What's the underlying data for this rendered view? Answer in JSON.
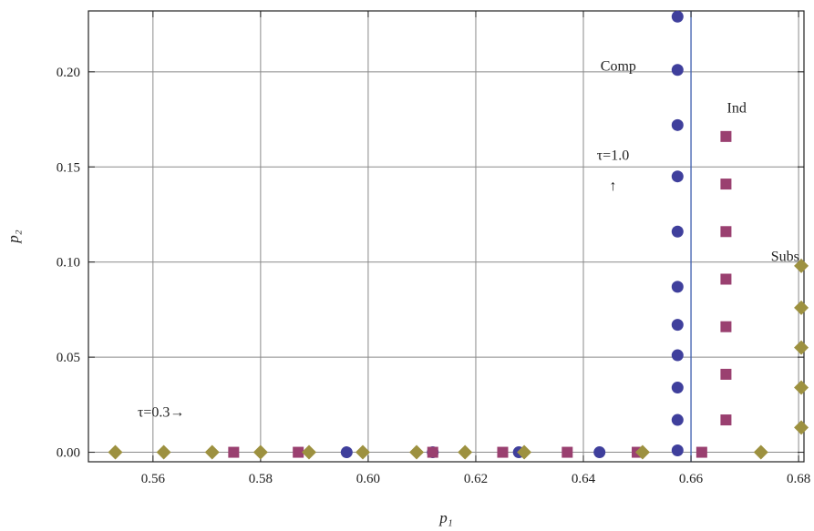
{
  "chart_data": {
    "type": "scatter",
    "xlabel": "p₁",
    "ylabel": "p₂",
    "xlim": [
      0.548,
      0.681
    ],
    "ylim": [
      -0.005,
      0.232
    ],
    "x_ticks": [
      0.56,
      0.58,
      0.6,
      0.62,
      0.64,
      0.66,
      0.68
    ],
    "x_tick_labels": [
      "0.56",
      "0.58",
      "0.60",
      "0.62",
      "0.64",
      "0.66",
      "0.68"
    ],
    "y_ticks": [
      0.0,
      0.05,
      0.1,
      0.15,
      0.2
    ],
    "y_tick_labels": [
      "0.00",
      "0.05",
      "0.10",
      "0.15",
      "0.20"
    ],
    "grid": true,
    "vertical_line_x": 0.66,
    "series": [
      {
        "marker": "circle",
        "color": "#3f3f9c",
        "points": [
          [
            0.596,
            0.0
          ],
          [
            0.612,
            0.0
          ],
          [
            0.628,
            0.0
          ],
          [
            0.643,
            0.0
          ],
          [
            0.6575,
            0.001
          ],
          [
            0.6575,
            0.017
          ],
          [
            0.6575,
            0.034
          ],
          [
            0.6575,
            0.051
          ],
          [
            0.6575,
            0.067
          ],
          [
            0.6575,
            0.087
          ],
          [
            0.6575,
            0.116
          ],
          [
            0.6575,
            0.145
          ],
          [
            0.6575,
            0.172
          ],
          [
            0.6575,
            0.201
          ],
          [
            0.6575,
            0.229
          ]
        ]
      },
      {
        "marker": "square",
        "color": "#9a4070",
        "points": [
          [
            0.575,
            0.0
          ],
          [
            0.587,
            0.0
          ],
          [
            0.612,
            0.0
          ],
          [
            0.625,
            0.0
          ],
          [
            0.637,
            0.0
          ],
          [
            0.65,
            0.0
          ],
          [
            0.662,
            0.0
          ],
          [
            0.6665,
            0.017
          ],
          [
            0.6665,
            0.041
          ],
          [
            0.6665,
            0.066
          ],
          [
            0.6665,
            0.091
          ],
          [
            0.6665,
            0.116
          ],
          [
            0.6665,
            0.141
          ],
          [
            0.6665,
            0.166
          ]
        ]
      },
      {
        "marker": "diamond",
        "color": "#9d9140",
        "points": [
          [
            0.553,
            0.0
          ],
          [
            0.562,
            0.0
          ],
          [
            0.571,
            0.0
          ],
          [
            0.58,
            0.0
          ],
          [
            0.589,
            0.0
          ],
          [
            0.599,
            0.0
          ],
          [
            0.609,
            0.0
          ],
          [
            0.618,
            0.0
          ],
          [
            0.629,
            0.0
          ],
          [
            0.651,
            0.0
          ],
          [
            0.673,
            0.0
          ],
          [
            0.6805,
            0.013
          ],
          [
            0.6805,
            0.034
          ],
          [
            0.6805,
            0.055
          ],
          [
            0.6805,
            0.076
          ],
          [
            0.6805,
            0.098
          ]
        ]
      }
    ],
    "annotations": [
      {
        "text": "Comp",
        "x": 0.6465,
        "y": 0.203
      },
      {
        "text": "Ind",
        "x": 0.6685,
        "y": 0.181
      },
      {
        "text": "Subs",
        "x": 0.6775,
        "y": 0.103
      },
      {
        "text": "τ=1.0",
        "x": 0.6455,
        "y": 0.156
      },
      {
        "text": "↑",
        "x": 0.6455,
        "y": 0.14
      },
      {
        "text": "τ=0.3→",
        "x": 0.5615,
        "y": 0.021
      }
    ]
  }
}
